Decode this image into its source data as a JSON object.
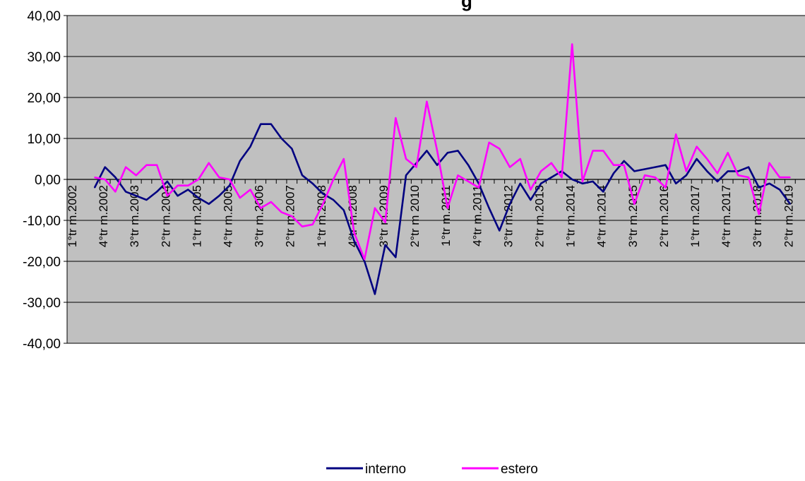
{
  "chart_data": {
    "type": "line",
    "title": "g",
    "ylim": [
      -40,
      40
    ],
    "yticks": [
      "40,00",
      "30,00",
      "20,00",
      "10,00",
      "0,00",
      "-10,00",
      "-20,00",
      "-30,00",
      "-40,00"
    ],
    "x_tick_labels": [
      "1°tr m.2002",
      "4°tr m.2002",
      "3°tr m.2003",
      "2°tr m.2004",
      "1°tr m.2005",
      "4°tr m.2005",
      "3°tr m.2006",
      "2°tr m.2007",
      "1°tr m.2008",
      "4°tr m.2008",
      "3°tr m.2009",
      "2°tr m 2010",
      "1°tr m.2011",
      "4°tr m.2011",
      "3°tr m.2012",
      "2°tr m.2013",
      "1°tr m.2014",
      "4°tr m.2014",
      "3°tr m.2015",
      "2°tr m.2016",
      "1°tr m.2017",
      "4°tr m.2017",
      "3°tr m.2018",
      "2°tr m.2019"
    ],
    "grid": true,
    "legend_position": "bottom",
    "colors": {
      "plot_bg": "#c0c0c0",
      "interno": "#000080",
      "estero": "#ff00ff"
    },
    "series": [
      {
        "name": "interno",
        "values": [
          -2,
          3,
          0.5,
          -3,
          -4,
          -5,
          -3,
          -0.5,
          -4,
          -2.5,
          -4.5,
          -6,
          -4,
          -1.5,
          4.5,
          8,
          13.5,
          13.5,
          10,
          7.5,
          1,
          -1,
          -3.5,
          -5,
          -7.5,
          -15,
          -20,
          -28,
          -16,
          -19,
          1,
          4,
          7,
          3.5,
          6.5,
          7,
          3.5,
          -1,
          -7,
          -12.5,
          -6,
          -1,
          -5,
          -1,
          0.5,
          2,
          0,
          -1,
          -0.5,
          -3,
          1.5,
          4.5,
          2,
          2.5,
          3,
          3.5,
          -1,
          1,
          5,
          2,
          -0.5,
          2,
          2,
          3,
          -2,
          -1,
          -2.5,
          -6
        ]
      },
      {
        "name": "estero",
        "values": [
          0.5,
          0,
          -3,
          3,
          1,
          3.5,
          3.5,
          -4,
          -1.5,
          -1.5,
          0,
          4,
          0.5,
          0,
          -4.5,
          -2.5,
          -7,
          -5.5,
          -8,
          -9,
          -11.5,
          -11,
          -6,
          0,
          5,
          -13,
          -19.5,
          -7,
          -10.5,
          15,
          5,
          3,
          19,
          7,
          -7,
          1,
          -0.5,
          -2,
          9,
          7.5,
          3,
          5,
          -2.5,
          2,
          4,
          0.5,
          33,
          -0.5,
          7,
          7,
          3.5,
          3.5,
          -6,
          1,
          0.5,
          -2,
          11,
          2,
          8,
          5,
          1.5,
          6.5,
          1,
          0.5,
          -8.5,
          4,
          0.5,
          0.5
        ]
      }
    ]
  },
  "legend": {
    "items": [
      {
        "label": "interno",
        "color": "#000080"
      },
      {
        "label": "estero",
        "color": "#ff00ff"
      }
    ]
  }
}
